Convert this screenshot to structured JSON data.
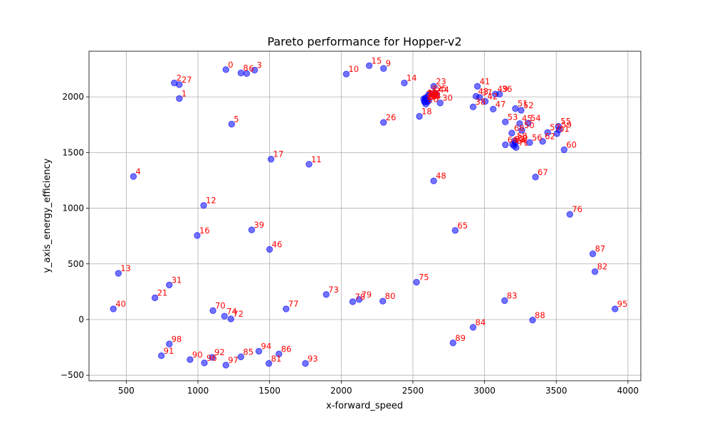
{
  "chart_data": {
    "type": "scatter",
    "title": "Pareto performance for Hopper-v2",
    "xlabel": "x-forward_speed",
    "ylabel": "y_axis_energy_efficiency",
    "xlim": [
      240,
      4090
    ],
    "ylim": [
      -550,
      2410
    ],
    "xticks": [
      500,
      1000,
      1500,
      2000,
      2500,
      3000,
      3500,
      4000
    ],
    "yticks": [
      -500,
      0,
      500,
      1000,
      1500,
      2000
    ],
    "grid": true,
    "point_color": "#0000ff",
    "label_color": "#ff0000",
    "points": [
      {
        "label": "0",
        "x": 1195,
        "y": 2245
      },
      {
        "label": "1",
        "x": 870,
        "y": 1985
      },
      {
        "label": "2",
        "x": 835,
        "y": 2125
      },
      {
        "label": "3",
        "x": 1395,
        "y": 2240
      },
      {
        "label": "4",
        "x": 550,
        "y": 1285
      },
      {
        "label": "5",
        "x": 1235,
        "y": 1755
      },
      {
        "label": "6",
        "x": 1340,
        "y": 2210
      },
      {
        "label": "7",
        "x": 2615,
        "y": 2025
      },
      {
        "label": "8",
        "x": 1300,
        "y": 2215
      },
      {
        "label": "9",
        "x": 2295,
        "y": 2255
      },
      {
        "label": "10",
        "x": 2035,
        "y": 2205
      },
      {
        "label": "11",
        "x": 1775,
        "y": 1395
      },
      {
        "label": "12",
        "x": 1040,
        "y": 1025
      },
      {
        "label": "13",
        "x": 445,
        "y": 415
      },
      {
        "label": "14",
        "x": 2440,
        "y": 2125
      },
      {
        "label": "15",
        "x": 2195,
        "y": 2280
      },
      {
        "label": "16",
        "x": 995,
        "y": 755
      },
      {
        "label": "17",
        "x": 1510,
        "y": 1440
      },
      {
        "label": "18",
        "x": 2545,
        "y": 1825
      },
      {
        "label": "19",
        "x": 2585,
        "y": 1960
      },
      {
        "label": "20",
        "x": 2590,
        "y": 1935
      },
      {
        "label": "21",
        "x": 700,
        "y": 195
      },
      {
        "label": "22",
        "x": 2595,
        "y": 1975
      },
      {
        "label": "23",
        "x": 2645,
        "y": 2095
      },
      {
        "label": "24",
        "x": 2610,
        "y": 1965
      },
      {
        "label": "25",
        "x": 2650,
        "y": 2030
      },
      {
        "label": "26",
        "x": 2295,
        "y": 1770
      },
      {
        "label": "27",
        "x": 870,
        "y": 2110
      },
      {
        "label": "28",
        "x": 2590,
        "y": 1985
      },
      {
        "label": "29",
        "x": 2580,
        "y": 1955
      },
      {
        "label": "30",
        "x": 2690,
        "y": 1945
      },
      {
        "label": "31",
        "x": 800,
        "y": 310
      },
      {
        "label": "32",
        "x": 2605,
        "y": 2010
      },
      {
        "label": "33",
        "x": 2575,
        "y": 1980
      },
      {
        "label": "34",
        "x": 2600,
        "y": 1955
      },
      {
        "label": "35",
        "x": 2585,
        "y": 1990
      },
      {
        "label": "36",
        "x": 3105,
        "y": 2025
      },
      {
        "label": "37",
        "x": 2965,
        "y": 1995
      },
      {
        "label": "38",
        "x": 2920,
        "y": 1910
      },
      {
        "label": "39",
        "x": 1375,
        "y": 805
      },
      {
        "label": "40",
        "x": 410,
        "y": 95
      },
      {
        "label": "41",
        "x": 2950,
        "y": 2095
      },
      {
        "label": "42",
        "x": 3005,
        "y": 1960
      },
      {
        "label": "43",
        "x": 2940,
        "y": 2005
      },
      {
        "label": "44",
        "x": 2665,
        "y": 2020
      },
      {
        "label": "45",
        "x": 3245,
        "y": 1760
      },
      {
        "label": "46",
        "x": 1500,
        "y": 630
      },
      {
        "label": "47",
        "x": 3060,
        "y": 1890
      },
      {
        "label": "48",
        "x": 2645,
        "y": 1245
      },
      {
        "label": "49",
        "x": 3075,
        "y": 2025
      },
      {
        "label": "50",
        "x": 3260,
        "y": 1700
      },
      {
        "label": "51",
        "x": 3215,
        "y": 1895
      },
      {
        "label": "52",
        "x": 3255,
        "y": 1880
      },
      {
        "label": "53",
        "x": 3145,
        "y": 1775
      },
      {
        "label": "54",
        "x": 3305,
        "y": 1765
      },
      {
        "label": "55",
        "x": 3515,
        "y": 1735
      },
      {
        "label": "56",
        "x": 3315,
        "y": 1590
      },
      {
        "label": "57",
        "x": 3440,
        "y": 1680
      },
      {
        "label": "58",
        "x": 3210,
        "y": 1605
      },
      {
        "label": "59",
        "x": 3520,
        "y": 1705
      },
      {
        "label": "60",
        "x": 3555,
        "y": 1525
      },
      {
        "label": "61",
        "x": 3505,
        "y": 1670
      },
      {
        "label": "62",
        "x": 3405,
        "y": 1600
      },
      {
        "label": "63",
        "x": 3195,
        "y": 1575
      },
      {
        "label": "64",
        "x": 3205,
        "y": 1560
      },
      {
        "label": "65",
        "x": 2795,
        "y": 800
      },
      {
        "label": "66",
        "x": 3145,
        "y": 1570
      },
      {
        "label": "67",
        "x": 3355,
        "y": 1280
      },
      {
        "label": "68",
        "x": 3190,
        "y": 1675
      },
      {
        "label": "69",
        "x": 3215,
        "y": 1585
      },
      {
        "label": "70",
        "x": 1105,
        "y": 80
      },
      {
        "label": "71",
        "x": 3220,
        "y": 1545
      },
      {
        "label": "72",
        "x": 1230,
        "y": 5
      },
      {
        "label": "73",
        "x": 1895,
        "y": 225
      },
      {
        "label": "74",
        "x": 1185,
        "y": 30
      },
      {
        "label": "75",
        "x": 2525,
        "y": 335
      },
      {
        "label": "76",
        "x": 3595,
        "y": 945
      },
      {
        "label": "77",
        "x": 1615,
        "y": 95
      },
      {
        "label": "78",
        "x": 2080,
        "y": 160
      },
      {
        "label": "79",
        "x": 2125,
        "y": 180
      },
      {
        "label": "80",
        "x": 2290,
        "y": 165
      },
      {
        "label": "81",
        "x": 1495,
        "y": -395
      },
      {
        "label": "82",
        "x": 3770,
        "y": 430
      },
      {
        "label": "83",
        "x": 3140,
        "y": 170
      },
      {
        "label": "84",
        "x": 2920,
        "y": -70
      },
      {
        "label": "85",
        "x": 1300,
        "y": -335
      },
      {
        "label": "86",
        "x": 1565,
        "y": -310
      },
      {
        "label": "87",
        "x": 3755,
        "y": 590
      },
      {
        "label": "88",
        "x": 3335,
        "y": -5
      },
      {
        "label": "89",
        "x": 2780,
        "y": -210
      },
      {
        "label": "90",
        "x": 945,
        "y": -360
      },
      {
        "label": "91",
        "x": 745,
        "y": -325
      },
      {
        "label": "92",
        "x": 1100,
        "y": -340
      },
      {
        "label": "93",
        "x": 1750,
        "y": -395
      },
      {
        "label": "94",
        "x": 1425,
        "y": -285
      },
      {
        "label": "95",
        "x": 3910,
        "y": 95
      },
      {
        "label": "96",
        "x": 1045,
        "y": -390
      },
      {
        "label": "97",
        "x": 1195,
        "y": -410
      },
      {
        "label": "98",
        "x": 800,
        "y": -220
      }
    ]
  }
}
